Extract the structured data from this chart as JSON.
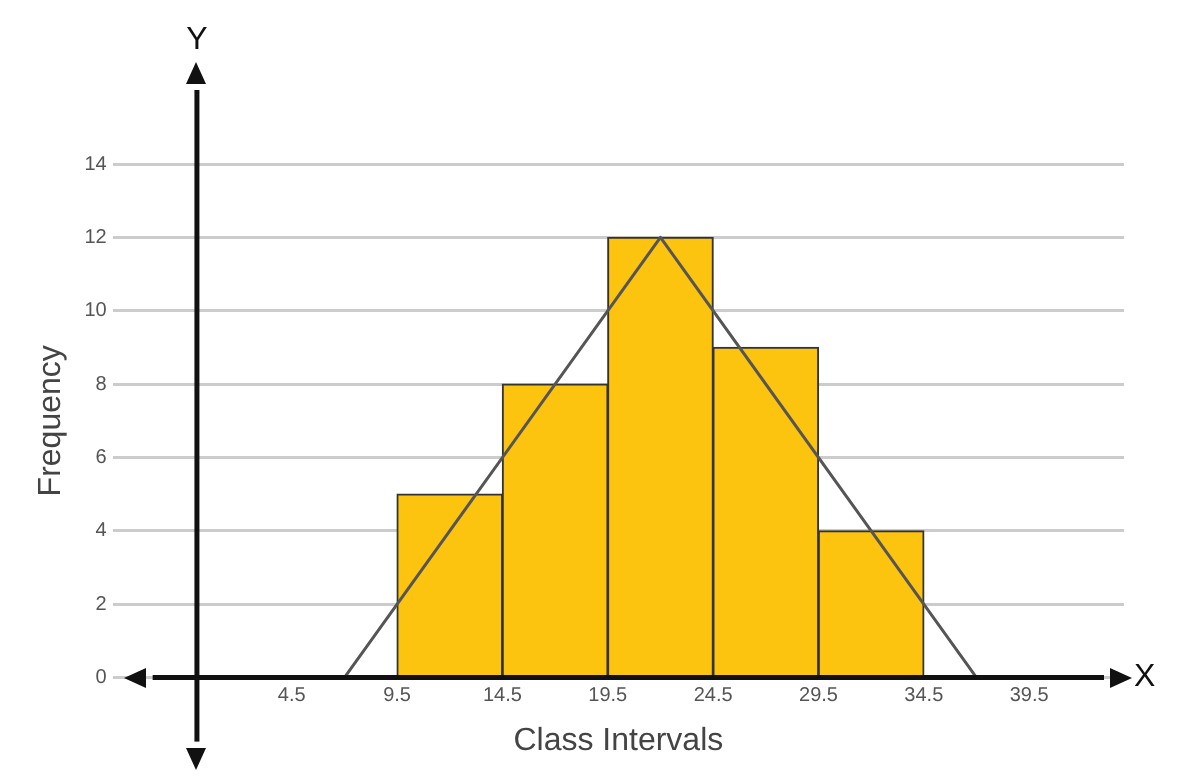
{
  "chart_data": {
    "type": "histogram",
    "xlabel": "Class Intervals",
    "ylabel": "Frequency",
    "bins": [
      9.5,
      14.5,
      19.5,
      24.5,
      29.5,
      34.5
    ],
    "values": [
      5,
      8,
      12,
      9,
      4
    ],
    "color": "#fcc30f",
    "series": [
      {
        "type": "line",
        "x": [
          7,
          22,
          37
        ],
        "values": [
          0,
          12,
          0
        ],
        "color": "#555555"
      }
    ],
    "marker": "none",
    "line_style": "solid",
    "xlim": [
      -4,
      44
    ],
    "ylim": [
      0,
      14
    ],
    "xticks": [
      4.5,
      9.5,
      14.5,
      19.5,
      24.5,
      29.5,
      34.5,
      39.5
    ],
    "yticks": [
      0,
      2,
      4,
      6,
      8,
      10,
      12,
      14
    ],
    "grid": "y",
    "annotations": [
      "X",
      "Y"
    ]
  }
}
